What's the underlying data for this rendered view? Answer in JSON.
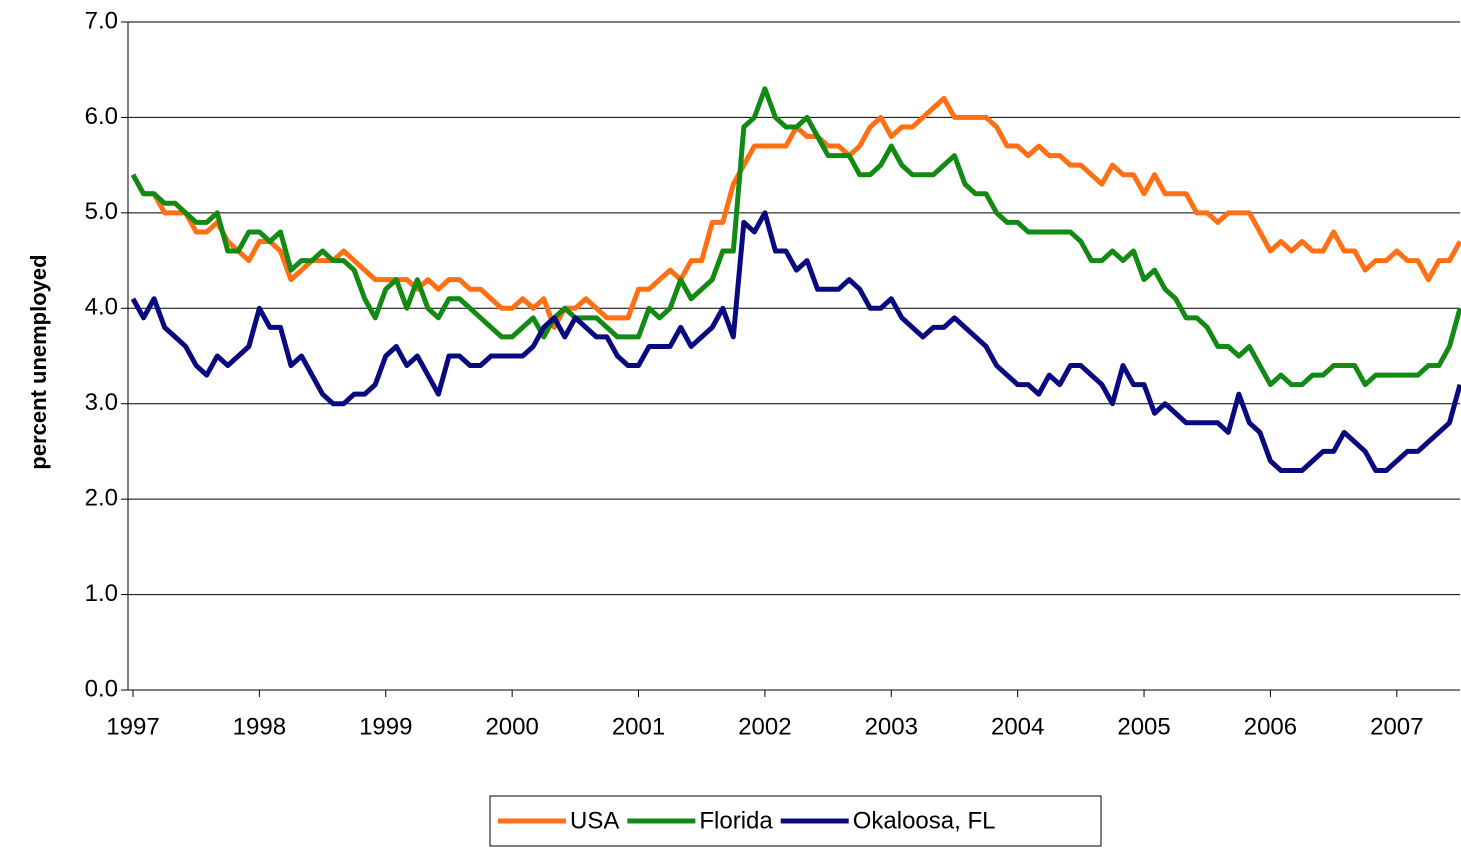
{
  "chart_data": {
    "type": "line",
    "ylabel": "percent unemployed",
    "categories": [
      "1997",
      null,
      null,
      null,
      null,
      null,
      null,
      null,
      null,
      null,
      null,
      null,
      "1998",
      null,
      null,
      null,
      null,
      null,
      null,
      null,
      null,
      null,
      null,
      null,
      "1999",
      null,
      null,
      null,
      null,
      null,
      null,
      null,
      null,
      null,
      null,
      null,
      "2000",
      null,
      null,
      null,
      null,
      null,
      null,
      null,
      null,
      null,
      null,
      null,
      "2001",
      null,
      null,
      null,
      null,
      null,
      null,
      null,
      null,
      null,
      null,
      null,
      "2002",
      null,
      null,
      null,
      null,
      null,
      null,
      null,
      null,
      null,
      null,
      null,
      "2003",
      null,
      null,
      null,
      null,
      null,
      null,
      null,
      null,
      null,
      null,
      null,
      "2004",
      null,
      null,
      null,
      null,
      null,
      null,
      null,
      null,
      null,
      null,
      null,
      "2005",
      null,
      null,
      null,
      null,
      null,
      null,
      null,
      null,
      null,
      null,
      null,
      "2006",
      null,
      null,
      null,
      null,
      null,
      null,
      null,
      null,
      null,
      null,
      null,
      "2007",
      null,
      null,
      null,
      null,
      null,
      null
    ],
    "series": [
      {
        "name": "USA",
        "color": "#ff6f14",
        "values": [
          5.4,
          5.2,
          5.2,
          5.0,
          5.0,
          5.0,
          4.8,
          4.8,
          4.9,
          4.7,
          4.6,
          4.5,
          4.7,
          4.7,
          4.6,
          4.3,
          4.4,
          4.5,
          4.5,
          4.5,
          4.6,
          4.5,
          4.4,
          4.3,
          4.3,
          4.3,
          4.3,
          4.2,
          4.3,
          4.2,
          4.3,
          4.3,
          4.2,
          4.2,
          4.1,
          4.0,
          4.0,
          4.1,
          4.0,
          4.1,
          3.8,
          4.0,
          4.0,
          4.1,
          4.0,
          3.9,
          3.9,
          3.9,
          4.2,
          4.2,
          4.3,
          4.4,
          4.3,
          4.5,
          4.5,
          4.9,
          4.9,
          5.3,
          5.5,
          5.7,
          5.7,
          5.7,
          5.7,
          5.9,
          5.8,
          5.8,
          5.7,
          5.7,
          5.6,
          5.7,
          5.9,
          6.0,
          5.8,
          5.9,
          5.9,
          6.0,
          6.1,
          6.2,
          6.0,
          6.0,
          6.0,
          6.0,
          5.9,
          5.7,
          5.7,
          5.6,
          5.7,
          5.6,
          5.6,
          5.5,
          5.5,
          5.4,
          5.3,
          5.5,
          5.4,
          5.4,
          5.2,
          5.4,
          5.2,
          5.2,
          5.2,
          5.0,
          5.0,
          4.9,
          5.0,
          5.0,
          5.0,
          4.8,
          4.6,
          4.7,
          4.6,
          4.7,
          4.6,
          4.6,
          4.8,
          4.6,
          4.6,
          4.4,
          4.5,
          4.5,
          4.6,
          4.5,
          4.5,
          4.3,
          4.5,
          4.5,
          4.7
        ]
      },
      {
        "name": "Florida",
        "color": "#138a13",
        "values": [
          5.4,
          5.2,
          5.2,
          5.1,
          5.1,
          5.0,
          4.9,
          4.9,
          5.0,
          4.6,
          4.6,
          4.8,
          4.8,
          4.7,
          4.8,
          4.4,
          4.5,
          4.5,
          4.6,
          4.5,
          4.5,
          4.4,
          4.1,
          3.9,
          4.2,
          4.3,
          4.0,
          4.3,
          4.0,
          3.9,
          4.1,
          4.1,
          4.0,
          3.9,
          3.8,
          3.7,
          3.7,
          3.8,
          3.9,
          3.7,
          3.9,
          4.0,
          3.9,
          3.9,
          3.9,
          3.8,
          3.7,
          3.7,
          3.7,
          4.0,
          3.9,
          4.0,
          4.3,
          4.1,
          4.2,
          4.3,
          4.6,
          4.6,
          5.9,
          6.0,
          6.3,
          6.0,
          5.9,
          5.9,
          6.0,
          5.8,
          5.6,
          5.6,
          5.6,
          5.4,
          5.4,
          5.5,
          5.7,
          5.5,
          5.4,
          5.4,
          5.4,
          5.5,
          5.6,
          5.3,
          5.2,
          5.2,
          5.0,
          4.9,
          4.9,
          4.8,
          4.8,
          4.8,
          4.8,
          4.8,
          4.7,
          4.5,
          4.5,
          4.6,
          4.5,
          4.6,
          4.3,
          4.4,
          4.2,
          4.1,
          3.9,
          3.9,
          3.8,
          3.6,
          3.6,
          3.5,
          3.6,
          3.4,
          3.2,
          3.3,
          3.2,
          3.2,
          3.3,
          3.3,
          3.4,
          3.4,
          3.4,
          3.2,
          3.3,
          3.3,
          3.3,
          3.3,
          3.3,
          3.4,
          3.4,
          3.6,
          4.0
        ]
      },
      {
        "name": "Okaloosa, FL",
        "color": "#0a0a80",
        "values": [
          4.1,
          3.9,
          4.1,
          3.8,
          3.7,
          3.6,
          3.4,
          3.3,
          3.5,
          3.4,
          3.5,
          3.6,
          4.0,
          3.8,
          3.8,
          3.4,
          3.5,
          3.3,
          3.1,
          3.0,
          3.0,
          3.1,
          3.1,
          3.2,
          3.5,
          3.6,
          3.4,
          3.5,
          3.3,
          3.1,
          3.5,
          3.5,
          3.4,
          3.4,
          3.5,
          3.5,
          3.5,
          3.5,
          3.6,
          3.8,
          3.9,
          3.7,
          3.9,
          3.8,
          3.7,
          3.7,
          3.5,
          3.4,
          3.4,
          3.6,
          3.6,
          3.6,
          3.8,
          3.6,
          3.7,
          3.8,
          4.0,
          3.7,
          4.9,
          4.8,
          5.0,
          4.6,
          4.6,
          4.4,
          4.5,
          4.2,
          4.2,
          4.2,
          4.3,
          4.2,
          4.0,
          4.0,
          4.1,
          3.9,
          3.8,
          3.7,
          3.8,
          3.8,
          3.9,
          3.8,
          3.7,
          3.6,
          3.4,
          3.3,
          3.2,
          3.2,
          3.1,
          3.3,
          3.2,
          3.4,
          3.4,
          3.3,
          3.2,
          3.0,
          3.4,
          3.2,
          3.2,
          2.9,
          3.0,
          2.9,
          2.8,
          2.8,
          2.8,
          2.8,
          2.7,
          3.1,
          2.8,
          2.7,
          2.4,
          2.3,
          2.3,
          2.3,
          2.4,
          2.5,
          2.5,
          2.7,
          2.6,
          2.5,
          2.3,
          2.3,
          2.4,
          2.5,
          2.5,
          2.6,
          2.7,
          2.8,
          3.2
        ]
      }
    ],
    "ylim": [
      0,
      7
    ],
    "yticks": [
      {
        "value": 0,
        "label": "0.0"
      },
      {
        "value": 1,
        "label": "1.0"
      },
      {
        "value": 2,
        "label": "2.0"
      },
      {
        "value": 3,
        "label": "3.0"
      },
      {
        "value": 4,
        "label": "4.0"
      },
      {
        "value": 5,
        "label": "5.0"
      },
      {
        "value": 6,
        "label": "6.0"
      },
      {
        "value": 7,
        "label": "7.0"
      }
    ],
    "grid": true,
    "legend": "bottom"
  }
}
